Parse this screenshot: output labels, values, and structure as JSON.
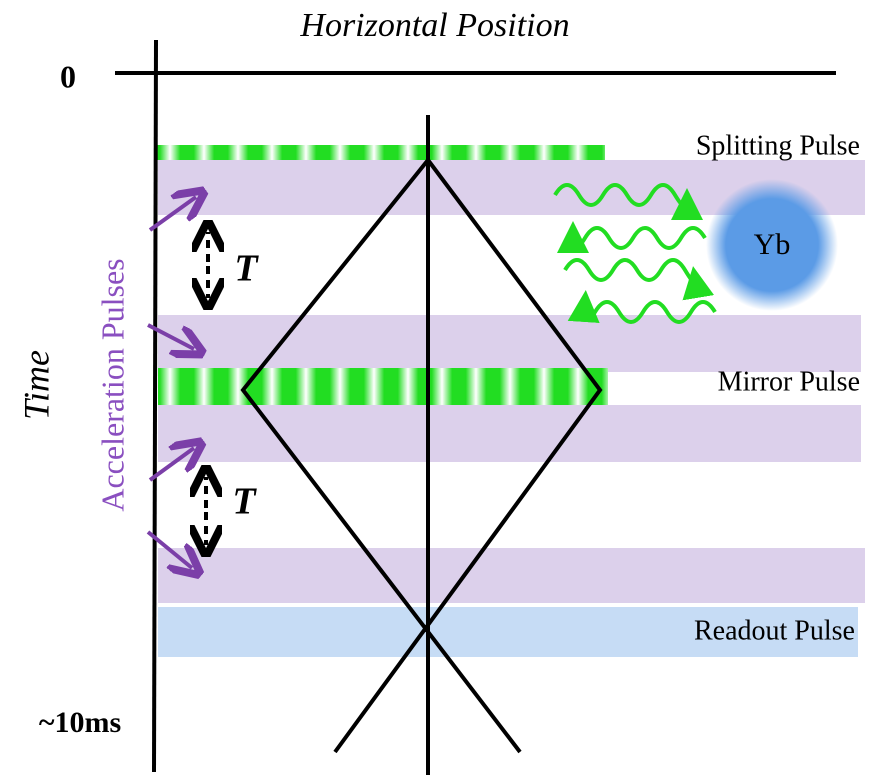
{
  "axis": {
    "x_label": "Horizontal Position",
    "origin_label": "0",
    "y_label": "Time",
    "end_label": "~10ms"
  },
  "side_label": "Acceleration Pulses",
  "pulses": {
    "splitting": "Splitting Pulse",
    "mirror": "Mirror Pulse",
    "readout": "Readout Pulse"
  },
  "atom": "Yb",
  "intervals": [
    "T",
    "T"
  ]
}
